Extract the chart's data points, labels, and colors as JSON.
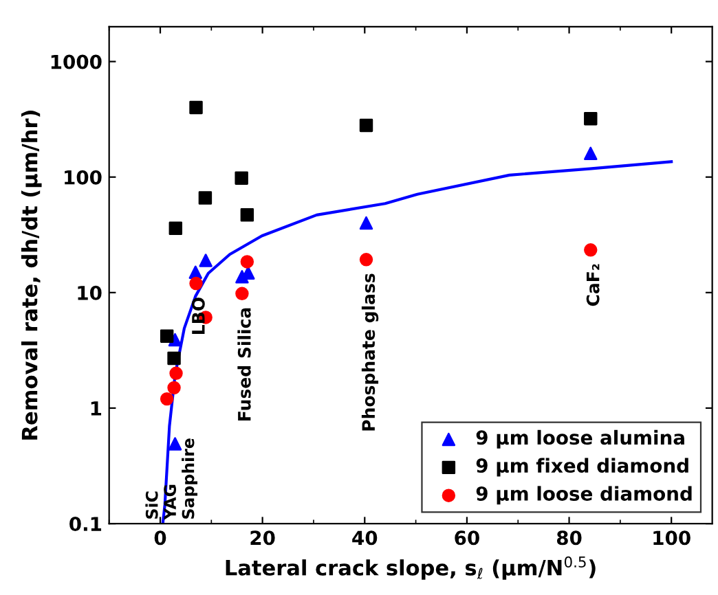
{
  "chart_data": {
    "type": "scatter",
    "xlabel": "Lateral crack slope, s$_{ℓ}$ (μm/N$^{0.5}$)",
    "ylabel": "Removal rate, dh/dt (μm/hr)",
    "log": "y",
    "xlim": [
      -10,
      108
    ],
    "xticks": [
      0,
      20,
      40,
      60,
      80,
      100
    ],
    "ylim": [
      0.1,
      2000
    ],
    "yticks": [
      0.1,
      1,
      10,
      100,
      1000
    ],
    "grid": false,
    "legend": "bottom right",
    "series": [
      {
        "name": "9 μm loose alumina",
        "marker": "triangle",
        "color": "#0000ff",
        "x": [
          2.9,
          2.9,
          6.9,
          8.9,
          16,
          17.2,
          40.3,
          84.2
        ],
        "values": [
          0.49,
          3.9,
          15,
          19,
          13.7,
          14.8,
          40,
          160
        ]
      },
      {
        "name": "9 μm fixed diamond",
        "marker": "square",
        "color": "#000000",
        "x": [
          7.0,
          40.3,
          15.9,
          8.8,
          17,
          3.0,
          1.3,
          2.7,
          84.2
        ],
        "values": [
          400,
          280,
          98,
          66,
          47,
          36,
          4.2,
          2.7,
          320
        ]
      },
      {
        "name": "9 μm loose diamond",
        "marker": "circle",
        "color": "#ff0000",
        "x": [
          1.3,
          2.7,
          3.1,
          7.0,
          8.9,
          16,
          17,
          40.3,
          84.2
        ],
        "values": [
          1.2,
          1.5,
          2,
          12,
          6.1,
          9.8,
          18.5,
          19.3,
          23.4
        ]
      },
      {
        "type": "line",
        "color": "#0000ff",
        "line_style": "solid",
        "x": [
          0.5,
          0.9,
          1.8,
          2.9,
          4.7,
          6.9,
          9.4,
          13.6,
          19.9,
          30.6,
          44,
          50.3,
          68.3,
          84,
          100
        ],
        "values": [
          0.1,
          0.145,
          0.7,
          1.93,
          4.9,
          9.3,
          14.7,
          21.4,
          31,
          47,
          59,
          71,
          104,
          118,
          136
        ]
      }
    ],
    "annotations": [
      "SiC",
      "YAG",
      "Sapphire",
      {
        "text": "LBO",
        "x": 7.0,
        "y": 12
      },
      {
        "text": "Fused Silica",
        "x": 16,
        "y": 9.8
      },
      {
        "text": "Phosphate glass",
        "x": 40.3,
        "y": 19.3
      },
      {
        "text": "CaF₂",
        "x": 84.2,
        "y": 23.4
      }
    ]
  }
}
